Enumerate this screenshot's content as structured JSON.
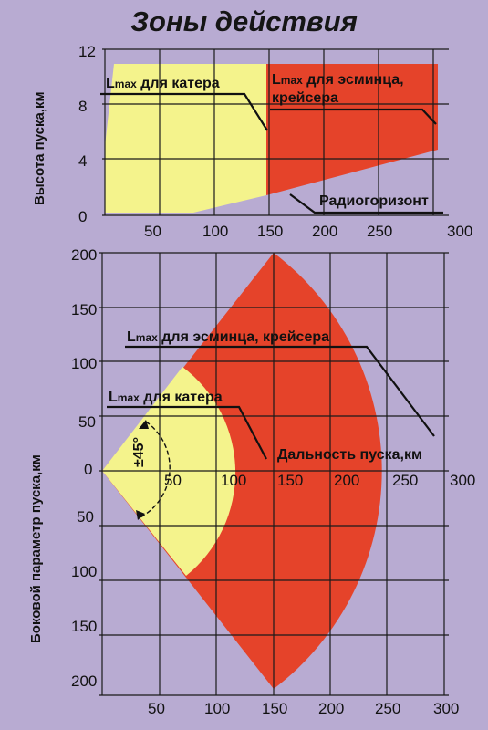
{
  "title": "Зоны действия",
  "top_chart": {
    "ylabel": "Высота пуска,км",
    "y_ticks": [
      "0",
      "4",
      "8",
      "12"
    ],
    "x_ticks": [
      "50",
      "100",
      "150",
      "200",
      "250",
      "300"
    ],
    "label_boat": "L",
    "label_boat_sub": "max",
    "label_boat_rest": " для катера",
    "label_destroyer": "L",
    "label_destroyer_sub": "max",
    "label_destroyer_rest": " для эсминца,",
    "label_destroyer_line2": "крейсера",
    "label_horizon": "Радиогоризонт"
  },
  "bottom_chart": {
    "ylabel": "Боковой параметр пуска,км",
    "y_ticks_up": [
      "200",
      "150",
      "100",
      "50",
      "0"
    ],
    "y_ticks_down": [
      "50",
      "100",
      "150",
      "200"
    ],
    "x_ticks_mid": [
      "50",
      "100",
      "150",
      "200",
      "250",
      "300"
    ],
    "x_ticks_bottom": [
      "50",
      "100",
      "150",
      "200",
      "250",
      "300"
    ],
    "label_destroyer": "L",
    "label_destroyer_sub": "max",
    "label_destroyer_rest": " для эсминца, крейсера",
    "label_boat": "L",
    "label_boat_sub": "max",
    "label_boat_rest": " для катера",
    "label_range": "Дальность пуска,км",
    "angle_label": "±45°"
  },
  "colors": {
    "background": "#b8abd2",
    "yellow_zone": "#f4f38c",
    "red_zone": "#e5432a",
    "grid": "#1a1a1a"
  }
}
